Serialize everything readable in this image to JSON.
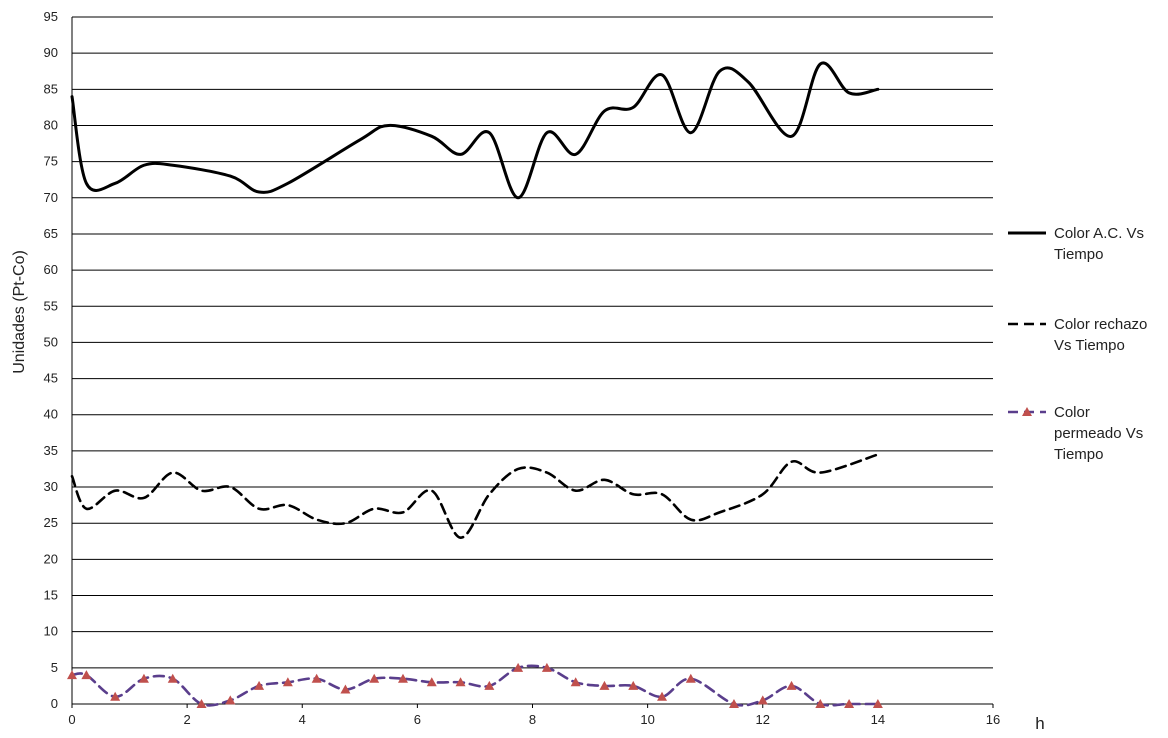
{
  "chart_data": {
    "type": "line",
    "title": "",
    "xlabel": "h",
    "ylabel": "Unidades (Pt-Co)",
    "xlim": [
      0,
      16
    ],
    "ylim": [
      0,
      95
    ],
    "x_ticks": [
      "0",
      "2",
      "4",
      "6",
      "8",
      "10",
      "12",
      "14",
      "16"
    ],
    "y_ticks": [
      "0",
      "5",
      "10",
      "15",
      "20",
      "25",
      "30",
      "35",
      "40",
      "45",
      "50",
      "55",
      "60",
      "65",
      "70",
      "75",
      "80",
      "85",
      "90",
      "95"
    ],
    "grid": "horizontal",
    "legend_position": "right",
    "series": [
      {
        "name": "Color A.C. Vs Tiempo",
        "style": "solid",
        "color": "#000000",
        "points": [
          [
            0,
            84
          ],
          [
            0.25,
            72
          ],
          [
            0.75,
            72
          ],
          [
            1.25,
            74.5
          ],
          [
            1.75,
            74.5
          ],
          [
            2.75,
            73
          ],
          [
            3.25,
            70.8
          ],
          [
            3.75,
            72
          ],
          [
            5,
            78
          ],
          [
            5.5,
            80
          ],
          [
            6.25,
            78.5
          ],
          [
            6.75,
            76
          ],
          [
            7.25,
            79
          ],
          [
            7.75,
            70
          ],
          [
            8.25,
            79
          ],
          [
            8.75,
            76
          ],
          [
            9.25,
            82
          ],
          [
            9.75,
            82.5
          ],
          [
            10.25,
            87
          ],
          [
            10.75,
            79
          ],
          [
            11.25,
            87.5
          ],
          [
            11.75,
            86
          ],
          [
            12.5,
            78.5
          ],
          [
            13,
            88.5
          ],
          [
            13.5,
            84.5
          ],
          [
            14,
            85
          ]
        ]
      },
      {
        "name": "Color rechazo Vs Tiempo",
        "style": "dashed",
        "color": "#000000",
        "points": [
          [
            0,
            31.5
          ],
          [
            0.25,
            27
          ],
          [
            0.75,
            29.5
          ],
          [
            1.25,
            28.5
          ],
          [
            1.75,
            32
          ],
          [
            2.25,
            29.5
          ],
          [
            2.75,
            30
          ],
          [
            3.25,
            27
          ],
          [
            3.75,
            27.5
          ],
          [
            4.25,
            25.5
          ],
          [
            4.75,
            25
          ],
          [
            5.25,
            27
          ],
          [
            5.75,
            26.5
          ],
          [
            6.25,
            29.5
          ],
          [
            6.75,
            23
          ],
          [
            7.25,
            29
          ],
          [
            7.75,
            32.5
          ],
          [
            8.25,
            32
          ],
          [
            8.75,
            29.5
          ],
          [
            9.25,
            31
          ],
          [
            9.75,
            29
          ],
          [
            10.25,
            29
          ],
          [
            10.75,
            25.5
          ],
          [
            11.25,
            26.5
          ],
          [
            12,
            29
          ],
          [
            12.5,
            33.5
          ],
          [
            13,
            32
          ],
          [
            14,
            34.5
          ]
        ]
      },
      {
        "name": "Color permeado Vs Tiempo",
        "style": "dashed-triangle",
        "color": "#5a3e8c",
        "marker_color": "#c0504d",
        "points": [
          [
            0,
            4
          ],
          [
            0.25,
            4
          ],
          [
            0.75,
            1
          ],
          [
            1.25,
            3.5
          ],
          [
            1.75,
            3.5
          ],
          [
            2.25,
            0
          ],
          [
            2.75,
            0.5
          ],
          [
            3.25,
            2.5
          ],
          [
            3.75,
            3
          ],
          [
            4.25,
            3.5
          ],
          [
            4.75,
            2
          ],
          [
            5.25,
            3.5
          ],
          [
            5.75,
            3.5
          ],
          [
            6.25,
            3
          ],
          [
            6.75,
            3
          ],
          [
            7.25,
            2.5
          ],
          [
            7.75,
            5
          ],
          [
            8.25,
            5
          ],
          [
            8.75,
            3
          ],
          [
            9.25,
            2.5
          ],
          [
            9.75,
            2.5
          ],
          [
            10.25,
            1
          ],
          [
            10.75,
            3.5
          ],
          [
            11.5,
            0
          ],
          [
            12,
            0.5
          ],
          [
            12.5,
            2.5
          ],
          [
            13,
            0
          ],
          [
            13.5,
            0
          ],
          [
            14,
            0
          ]
        ]
      }
    ],
    "legend": [
      {
        "lines": [
          "Color A.C. Vs",
          "Tiempo"
        ]
      },
      {
        "lines": [
          "Color rechazo",
          "Vs Tiempo"
        ]
      },
      {
        "lines": [
          "Color",
          "permeado Vs",
          "Tiempo"
        ]
      }
    ]
  }
}
